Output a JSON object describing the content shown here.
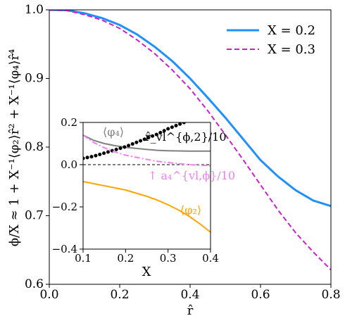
{
  "chart_data": [
    {
      "type": "line",
      "title": "",
      "xlabel": "r̂",
      "ylabel": "ϕ/X ≈ 1 + X⁻¹⟨φ₂⟩r̂² + X⁻¹⟨φ₄⟩r̂⁴",
      "xlim": [
        0.0,
        0.8
      ],
      "ylim": [
        0.6,
        1.0
      ],
      "xticks": [
        "0.0",
        "0.2",
        "0.4",
        "0.6",
        "0.8"
      ],
      "yticks": [
        "0.6",
        "0.7",
        "0.8",
        "0.9",
        "1.0"
      ],
      "grid": false,
      "legend": "top-right",
      "x": [
        0.0,
        0.05,
        0.1,
        0.15,
        0.2,
        0.25,
        0.3,
        0.35,
        0.4,
        0.45,
        0.5,
        0.55,
        0.6,
        0.65,
        0.7,
        0.75,
        0.8
      ],
      "series": [
        {
          "name": "X = 0.2",
          "color": "#1e90ff",
          "style": "solid",
          "values": [
            1.0,
            0.9995,
            0.995,
            0.988,
            0.978,
            0.964,
            0.946,
            0.925,
            0.9,
            0.872,
            0.843,
            0.812,
            0.781,
            0.757,
            0.737,
            0.722,
            0.714
          ]
        },
        {
          "name": "X = 0.3",
          "color": "#cc1fcc",
          "style": "dashed",
          "values": [
            1.0,
            0.999,
            0.993,
            0.985,
            0.973,
            0.956,
            0.936,
            0.912,
            0.885,
            0.853,
            0.818,
            0.782,
            0.745,
            0.708,
            0.675,
            0.647,
            0.621
          ]
        }
      ]
    },
    {
      "type": "line",
      "title": "",
      "xlabel": "X",
      "ylabel": "",
      "xlim": [
        0.1,
        0.4
      ],
      "ylim": [
        -0.4,
        0.2
      ],
      "xticks": [
        "0.1",
        "0.2",
        "0.3",
        "0.4"
      ],
      "yticks": [
        "−0.4",
        "−0.2",
        "0.0",
        "0.2"
      ],
      "grid": false,
      "reference_line": {
        "y": 0.0,
        "color": "#000000",
        "style": "dashed"
      },
      "x": [
        0.1,
        0.125,
        0.15,
        0.175,
        0.2,
        0.225,
        0.25,
        0.275,
        0.3,
        0.325,
        0.35,
        0.375,
        0.4
      ],
      "series": [
        {
          "name": "⟨φ₄⟩",
          "color": "#808080",
          "style": "solid",
          "values": [
            0.14,
            0.115,
            0.1,
            0.09,
            0.082,
            0.077,
            0.072,
            0.068,
            0.066,
            0.065,
            0.064,
            0.064,
            0.064
          ]
        },
        {
          "name": "r̂_vl^{ϕ,2}/10",
          "color": "#000000",
          "style": "dotted",
          "values": [
            0.03,
            0.04,
            0.055,
            0.07,
            0.085,
            0.105,
            0.125,
            0.145,
            0.17,
            0.19,
            0.21,
            0.235,
            0.26
          ]
        },
        {
          "name": "↑ a₄^{vl,ϕ}/10",
          "color": "#ee82ee",
          "style": "dashdot",
          "values": [
            0.14,
            0.105,
            0.08,
            0.06,
            0.045,
            0.035,
            0.025,
            0.016,
            0.01,
            0.005,
            0.0,
            -0.003,
            -0.005
          ]
        },
        {
          "name": "⟨φ₂⟩",
          "color": "#ffa500",
          "style": "solid",
          "values": [
            -0.08,
            -0.09,
            -0.1,
            -0.11,
            -0.12,
            -0.135,
            -0.15,
            -0.168,
            -0.19,
            -0.215,
            -0.245,
            -0.28,
            -0.32
          ]
        }
      ]
    }
  ]
}
